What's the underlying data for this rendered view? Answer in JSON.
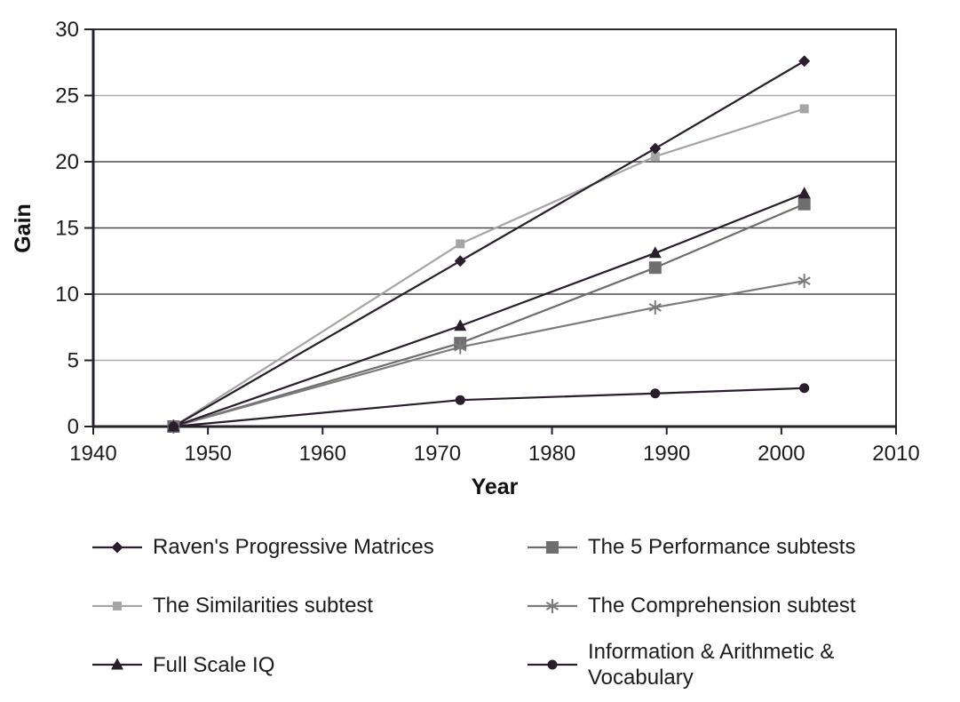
{
  "chart_data": {
    "type": "line",
    "title": "",
    "xlabel": "Year",
    "ylabel": "Gain",
    "x": [
      1947,
      1972,
      1989,
      2002
    ],
    "xlim": [
      1940,
      2010
    ],
    "ylim": [
      0,
      30
    ],
    "x_ticks": [
      1940,
      1950,
      1960,
      1970,
      1980,
      1990,
      2000,
      2010
    ],
    "y_ticks": [
      0,
      5,
      10,
      15,
      20,
      25,
      30
    ],
    "grid": "horizontal",
    "grid_light_values": [
      5,
      25
    ],
    "legend_position": "bottom-two-columns",
    "series": [
      {
        "name": "Raven's Progressive Matrices",
        "marker": "diamond",
        "color": "#2a1e2c",
        "values": [
          0,
          12.5,
          21.0,
          27.6
        ]
      },
      {
        "name": "The 5 Performance subtests",
        "marker": "square-large",
        "color": "#6e6e6e",
        "values": [
          0,
          6.3,
          12.0,
          16.8
        ]
      },
      {
        "name": "The Similarities subtest",
        "marker": "square-small",
        "color": "#a5a5a5",
        "values": [
          0,
          13.8,
          20.4,
          24.0
        ]
      },
      {
        "name": "The Comprehension subtest",
        "marker": "asterisk",
        "color": "#7b7b7b",
        "values": [
          0,
          6.0,
          9.0,
          11.0
        ]
      },
      {
        "name": "Full Scale IQ",
        "marker": "triangle",
        "color": "#2a1e2c",
        "values": [
          0,
          7.6,
          13.1,
          17.6
        ]
      },
      {
        "name": "Information & Arithmetic & Vocabulary",
        "marker": "circle",
        "color": "#2a1e2c",
        "values": [
          0,
          2.0,
          2.5,
          2.9
        ]
      }
    ]
  },
  "colors": {
    "axis": "#26202a",
    "border": "#2e2a31",
    "grid_dark": "#4a4a4a",
    "grid_light": "#ababab",
    "text": "#1c1c1c"
  }
}
